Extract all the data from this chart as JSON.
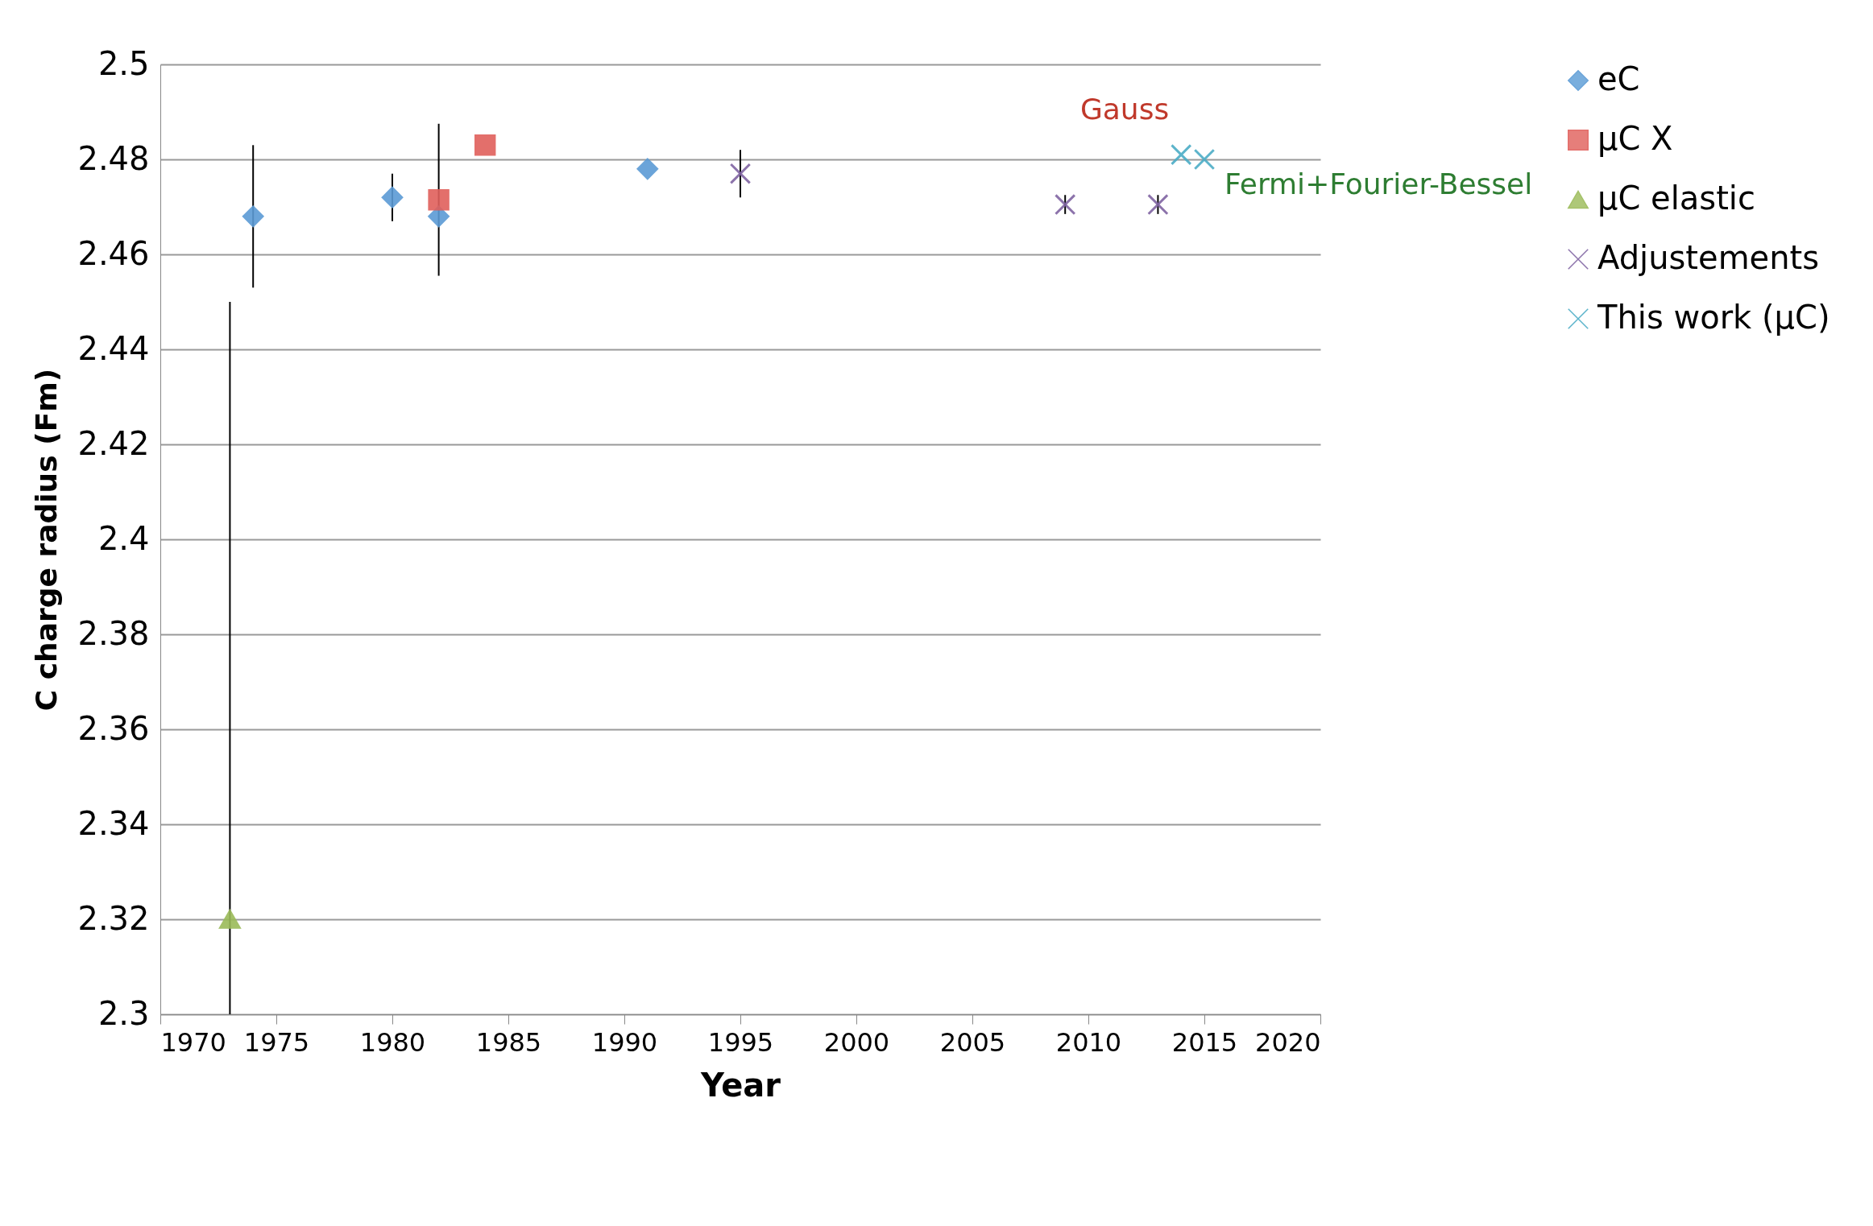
{
  "chart_data": {
    "type": "scatter",
    "xlabel": "Year",
    "ylabel": "C charge radius (Fm)",
    "xlim": [
      1970,
      2020
    ],
    "xticks": [
      1970,
      1975,
      1980,
      1985,
      1990,
      1995,
      2000,
      2005,
      2010,
      2015,
      2020
    ],
    "ylim": [
      2.3,
      2.5
    ],
    "yticks": [
      2.3,
      2.32,
      2.34,
      2.36,
      2.38,
      2.4,
      2.42,
      2.44,
      2.46,
      2.48,
      2.5
    ],
    "grid": "y",
    "legend": "right",
    "series": [
      {
        "name": "eC",
        "color": "#5b9bd5",
        "marker": "diamond",
        "x": [
          1974,
          1980,
          1982,
          1991
        ],
        "values": [
          2.468,
          2.472,
          2.468,
          2.478
        ],
        "errors": [
          0.015,
          0.005,
          null,
          null
        ]
      },
      {
        "name": "μC X",
        "color": "#e0605c",
        "marker": "square",
        "x": [
          1982,
          1984
        ],
        "values": [
          2.4715,
          2.483
        ],
        "errors": [
          0.016,
          null
        ]
      },
      {
        "name": "μC elastic",
        "color": "#9bbb59",
        "marker": "triangle",
        "x": [
          1973
        ],
        "values": [
          2.32
        ],
        "errors": [
          [
            2.3,
            2.45
          ]
        ]
      },
      {
        "name": "Adjustements",
        "color": "#8064a2",
        "marker": "cross",
        "x": [
          1995,
          2009,
          2013
        ],
        "values": [
          2.477,
          2.4705,
          2.4705
        ],
        "errors": [
          0.005,
          0.002,
          0.002
        ]
      },
      {
        "name": "This work (μC)",
        "color": "#4bacc6",
        "marker": "cross",
        "x": [
          2014,
          2015
        ],
        "values": [
          2.481,
          2.48
        ],
        "errors": [
          null,
          null
        ]
      }
    ],
    "annotations": [
      {
        "text": "Gauss",
        "x": 2014,
        "y": 2.481
      },
      {
        "text": "Fermi+Fourier-Bessel",
        "x": 2015,
        "y": 2.48
      }
    ]
  }
}
